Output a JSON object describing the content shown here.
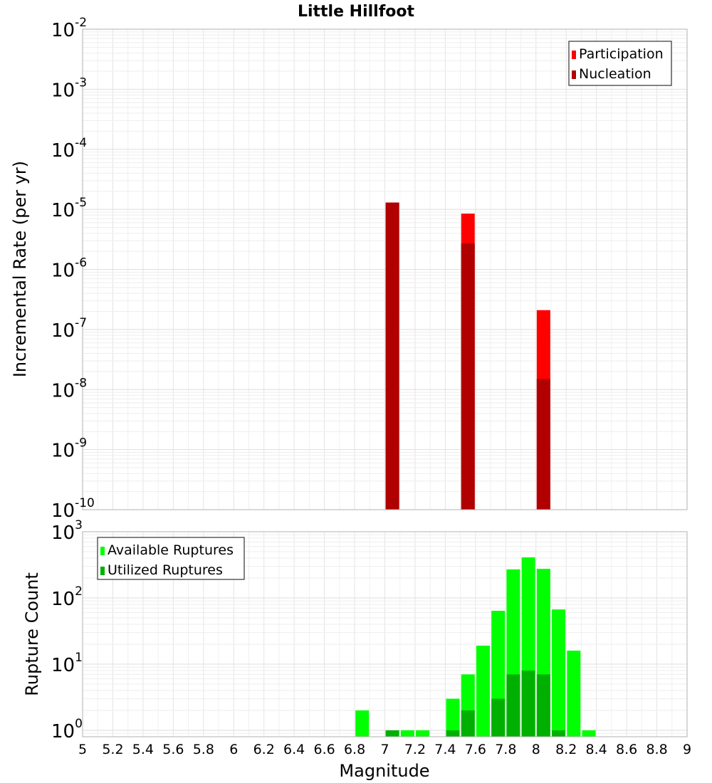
{
  "chart_data": [
    {
      "type": "bar",
      "title": "Little Hillfoot",
      "ylabel": "Incremental Rate (per yr)",
      "xlabel": "",
      "yscale": "log",
      "ylim": [
        1e-10,
        0.01
      ],
      "xlim": [
        5,
        9
      ],
      "y_ticks": [
        {
          "base": "10",
          "exp": "-10"
        },
        {
          "base": "10",
          "exp": "-9"
        },
        {
          "base": "10",
          "exp": "-8"
        },
        {
          "base": "10",
          "exp": "-7"
        },
        {
          "base": "10",
          "exp": "-6"
        },
        {
          "base": "10",
          "exp": "-5"
        },
        {
          "base": "10",
          "exp": "-4"
        },
        {
          "base": "10",
          "exp": "-3"
        },
        {
          "base": "10",
          "exp": "-2"
        }
      ],
      "legend_position": "top-right",
      "grid": true,
      "series": [
        {
          "name": "Participation",
          "color": "#ff0000",
          "points": [
            {
              "x": 7.05,
              "y": 1.3e-05
            },
            {
              "x": 7.55,
              "y": 8.5e-06
            },
            {
              "x": 8.05,
              "y": 2.1e-07
            }
          ]
        },
        {
          "name": "Nucleation",
          "color": "#b00000",
          "points": [
            {
              "x": 7.05,
              "y": 1.3e-05
            },
            {
              "x": 7.55,
              "y": 2.7e-06
            },
            {
              "x": 8.05,
              "y": 1.5e-08
            }
          ]
        }
      ]
    },
    {
      "type": "bar",
      "title": "",
      "ylabel": "Rupture Count",
      "xlabel": "Magnitude",
      "yscale": "log",
      "ylim": [
        0.8,
        1000
      ],
      "xlim": [
        5,
        9
      ],
      "x_tick_labels": [
        "5",
        "5.2",
        "5.4",
        "5.6",
        "5.8",
        "6",
        "6.2",
        "6.4",
        "6.6",
        "6.8",
        "7",
        "7.2",
        "7.4",
        "7.6",
        "7.8",
        "8",
        "8.2",
        "8.4",
        "8.6",
        "8.8",
        "9"
      ],
      "y_ticks": [
        {
          "base": "10",
          "exp": "0"
        },
        {
          "base": "10",
          "exp": "1"
        },
        {
          "base": "10",
          "exp": "2"
        },
        {
          "base": "10",
          "exp": "3"
        }
      ],
      "legend_position": "top-left",
      "grid": true,
      "series": [
        {
          "name": "Available Ruptures",
          "color": "#00ff00",
          "points": [
            {
              "x": 6.85,
              "y": 2
            },
            {
              "x": 7.05,
              "y": 1
            },
            {
              "x": 7.15,
              "y": 1
            },
            {
              "x": 7.25,
              "y": 1
            },
            {
              "x": 7.45,
              "y": 3
            },
            {
              "x": 7.55,
              "y": 7
            },
            {
              "x": 7.65,
              "y": 19
            },
            {
              "x": 7.75,
              "y": 64
            },
            {
              "x": 7.85,
              "y": 270
            },
            {
              "x": 7.95,
              "y": 410
            },
            {
              "x": 8.05,
              "y": 275
            },
            {
              "x": 8.15,
              "y": 67
            },
            {
              "x": 8.25,
              "y": 16
            },
            {
              "x": 8.35,
              "y": 1
            }
          ]
        },
        {
          "name": "Utilized Ruptures",
          "color": "#00b000",
          "points": [
            {
              "x": 7.05,
              "y": 1
            },
            {
              "x": 7.45,
              "y": 1
            },
            {
              "x": 7.55,
              "y": 2
            },
            {
              "x": 7.75,
              "y": 3
            },
            {
              "x": 7.85,
              "y": 7
            },
            {
              "x": 7.95,
              "y": 8
            },
            {
              "x": 8.05,
              "y": 7
            },
            {
              "x": 8.15,
              "y": 1
            }
          ]
        }
      ]
    }
  ]
}
